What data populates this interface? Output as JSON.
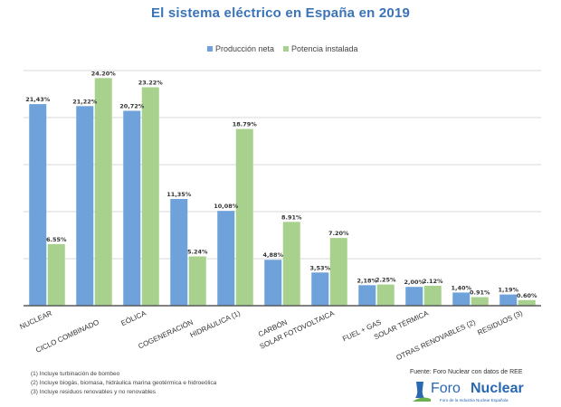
{
  "chart_data": {
    "type": "bar",
    "title": "El sistema eléctrico en España en 2019",
    "xlabel": "",
    "ylabel": "",
    "ylim": [
      0,
      25
    ],
    "grid": true,
    "legend_position": "top-center",
    "categories": [
      "NUCLEAR",
      "CICLO COMBINADO",
      "EÓLICA",
      "COGENERACIÓN",
      "HIDRÁULICA (1)",
      "CARBÓN",
      "SOLAR FOTOVOLTAICA",
      "FUEL + GAS",
      "SOLAR TÉRMICA",
      "OTRAS RENOVABLES (2)",
      "RESIDUOS (3)"
    ],
    "series": [
      {
        "name": "Producción neta",
        "color": "#6fa1da",
        "values": [
          21.43,
          21.22,
          20.72,
          11.35,
          10.08,
          4.88,
          3.53,
          2.18,
          2.0,
          1.4,
          1.19
        ],
        "labels": [
          "21,43%",
          "21,22%",
          "20,72%",
          "11,35%",
          "10,08%",
          "4,88%",
          "3,53%",
          "2,18%",
          "2,00%",
          "1,40%",
          "1,19%"
        ]
      },
      {
        "name": "Potencia instalada",
        "color": "#a9d18e",
        "values": [
          6.55,
          24.2,
          23.22,
          5.24,
          18.79,
          8.91,
          7.2,
          2.25,
          2.12,
          0.91,
          0.6
        ],
        "labels": [
          "6.55%",
          "24.20%",
          "23.22%",
          "5.24%",
          "18.79%",
          "8.91%",
          "7.20%",
          "2.25%",
          "2.12%",
          "0.91%",
          "0.60%"
        ]
      }
    ]
  },
  "footnotes": [
    "(1) Incluye turbinación de bombeo",
    "(2) Incluye biogás, biomasa, hidráulica marina geotérmica e hidroeólica",
    "(3) Incluye residuos renovables y no renovables"
  ],
  "source": "Fuente: Foro Nuclear con datos de REE",
  "logo": {
    "word1": "Foro",
    "word2": "Nuclear",
    "subtitle": "Foro de la Industria Nuclear Española"
  }
}
